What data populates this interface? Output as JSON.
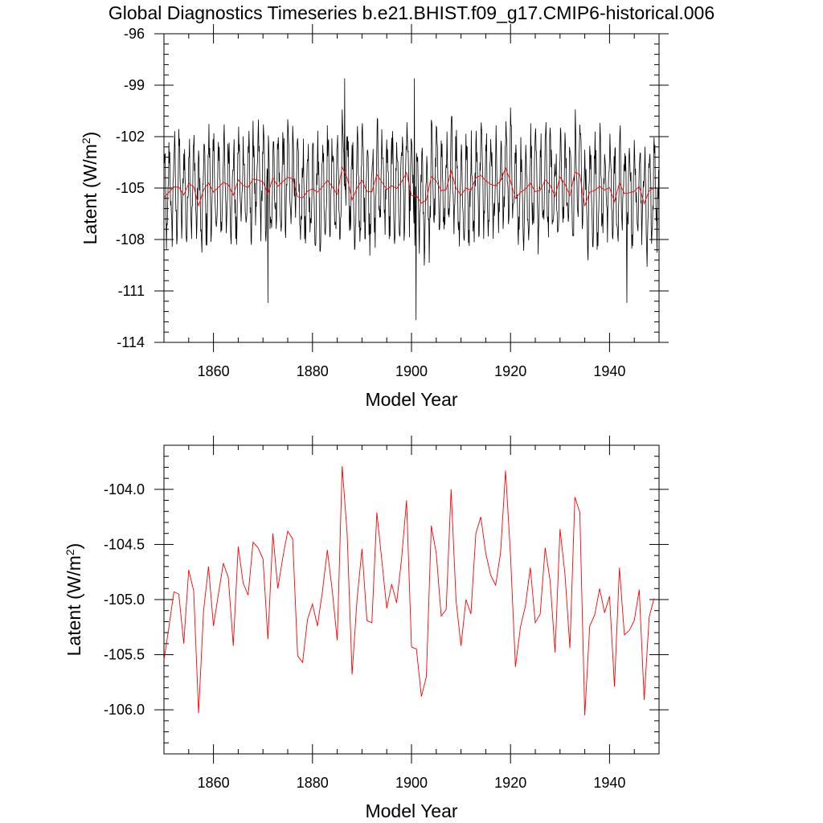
{
  "figure": {
    "title": "Global Diagnostics Timeseries b.e21.BHIST.f09_g17.CMIP6-historical.006"
  },
  "colors": {
    "monthly": "#000000",
    "annual": "#ff0000",
    "axis": "#000000"
  },
  "chart_data": [
    {
      "type": "line",
      "title": "Global Diagnostics Timeseries b.e21.BHIST.f09_g17.CMIP6-historical.006",
      "xlabel": "Model Year",
      "ylabel": "Latent (W/m2)",
      "xlim": [
        1850,
        1950
      ],
      "ylim": [
        -114,
        -96
      ],
      "xticks": [
        1860,
        1880,
        1900,
        1920,
        1940
      ],
      "xtick_labels": [
        "1860",
        "1880",
        "1900",
        "1920",
        "1940"
      ],
      "yticks": [
        -96,
        -99,
        -102,
        -105,
        -108,
        -111,
        -114
      ],
      "ytick_labels": [
        "-96",
        "-99",
        "-102",
        "-105",
        "-108",
        "-111",
        "-114"
      ],
      "series": [
        {
          "name": "monthly",
          "color": "#000000",
          "monthly": true,
          "start": 1850,
          "seasonal_amplitude": 2.5,
          "noise": 1.3,
          "extremes": [
            [
              1886.5,
              -98.6
            ],
            [
              1900.6,
              -98.6
            ],
            [
              1871.0,
              -111.7
            ],
            [
              1900.9,
              -112.7
            ],
            [
              1943.5,
              -111.7
            ],
            [
              1920.0,
              -100.3
            ]
          ]
        },
        {
          "name": "annual",
          "color": "#ff0000",
          "ref": "annual_mean"
        }
      ]
    },
    {
      "type": "line",
      "xlabel": "Model Year",
      "ylabel": "Latent (W/m2)",
      "xlim": [
        1850,
        1950
      ],
      "ylim": [
        -106.4,
        -103.6
      ],
      "xticks": [
        1860,
        1880,
        1900,
        1920,
        1940
      ],
      "xtick_labels": [
        "1860",
        "1880",
        "1900",
        "1920",
        "1940"
      ],
      "yticks": [
        -104.0,
        -104.5,
        -105.0,
        -105.5,
        -106.0
      ],
      "ytick_labels": [
        "-104.0",
        "-104.5",
        "-105.0",
        "-105.5",
        "-106.0"
      ],
      "series": [
        {
          "name": "annual_mean",
          "color": "#ff0000",
          "x_start": 1850,
          "values": [
            -105.55,
            -105.25,
            -104.93,
            -104.95,
            -105.4,
            -104.73,
            -104.92,
            -106.03,
            -105.1,
            -104.7,
            -105.24,
            -104.95,
            -104.67,
            -104.8,
            -105.42,
            -104.52,
            -104.85,
            -104.96,
            -104.48,
            -104.53,
            -104.63,
            -105.36,
            -104.4,
            -104.9,
            -104.62,
            -104.38,
            -104.45,
            -105.51,
            -105.57,
            -105.18,
            -105.04,
            -105.24,
            -104.93,
            -104.55,
            -104.92,
            -105.37,
            -103.79,
            -104.4,
            -105.68,
            -105.0,
            -104.54,
            -105.19,
            -105.21,
            -104.21,
            -104.64,
            -105.08,
            -104.86,
            -105.03,
            -104.63,
            -104.1,
            -105.43,
            -105.45,
            -105.88,
            -105.7,
            -104.33,
            -104.58,
            -105.15,
            -105.09,
            -104.0,
            -105.01,
            -105.42,
            -105.0,
            -105.13,
            -104.4,
            -104.25,
            -104.58,
            -104.78,
            -104.87,
            -104.57,
            -103.83,
            -104.6,
            -105.61,
            -105.25,
            -105.06,
            -104.71,
            -105.21,
            -105.13,
            -104.53,
            -104.83,
            -105.48,
            -104.36,
            -104.77,
            -105.44,
            -104.07,
            -104.21,
            -106.05,
            -105.24,
            -105.14,
            -104.9,
            -105.12,
            -104.97,
            -105.79,
            -104.71,
            -105.32,
            -105.28,
            -105.19,
            -104.91,
            -105.91,
            -105.16,
            -104.99
          ]
        }
      ]
    }
  ]
}
